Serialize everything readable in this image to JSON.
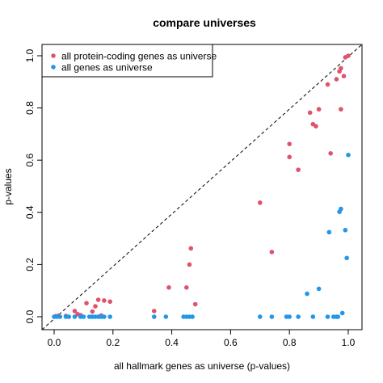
{
  "chart_data": {
    "type": "scatter",
    "title": "compare universes",
    "xlabel": "all hallmark genes as universe (p-values)",
    "ylabel": "p-values",
    "xlim": [
      0,
      1
    ],
    "ylim": [
      0,
      1
    ],
    "xticks": [
      "0.0",
      "0.2",
      "0.4",
      "0.6",
      "0.8",
      "1.0"
    ],
    "yticks": [
      "0.0",
      "0.2",
      "0.4",
      "0.6",
      "0.8",
      "1.0"
    ],
    "reference_line": "y = x (dashed)",
    "legend_position": "top-left",
    "series": [
      {
        "name": "all protein-coding genes as universe",
        "color": "#DF536B",
        "points": [
          [
            0.005,
            0.002
          ],
          [
            0.015,
            0.004
          ],
          [
            0.04,
            0.003
          ],
          [
            0.07,
            0.022
          ],
          [
            0.08,
            0.01
          ],
          [
            0.09,
            0.006
          ],
          [
            0.11,
            0.052
          ],
          [
            0.13,
            0.02
          ],
          [
            0.14,
            0.04
          ],
          [
            0.15,
            0.065
          ],
          [
            0.16,
            0.005
          ],
          [
            0.17,
            0.062
          ],
          [
            0.19,
            0.058
          ],
          [
            0.34,
            0.022
          ],
          [
            0.39,
            0.112
          ],
          [
            0.45,
            0.112
          ],
          [
            0.46,
            0.2
          ],
          [
            0.465,
            0.262
          ],
          [
            0.48,
            0.048
          ],
          [
            0.7,
            0.437
          ],
          [
            0.74,
            0.248
          ],
          [
            0.8,
            0.612
          ],
          [
            0.8,
            0.662
          ],
          [
            0.83,
            0.563
          ],
          [
            0.87,
            0.782
          ],
          [
            0.88,
            0.738
          ],
          [
            0.89,
            0.73
          ],
          [
            0.9,
            0.795
          ],
          [
            0.93,
            0.89
          ],
          [
            0.94,
            0.626
          ],
          [
            0.96,
            0.91
          ],
          [
            0.97,
            0.94
          ],
          [
            0.975,
            0.952
          ],
          [
            0.975,
            0.795
          ],
          [
            0.985,
            0.922
          ],
          [
            0.99,
            0.994
          ],
          [
            1.0,
            1.0
          ]
        ]
      },
      {
        "name": "all genes as universe",
        "color": "#2297E6",
        "points": [
          [
            0.0,
            0.0
          ],
          [
            0.01,
            0.0
          ],
          [
            0.02,
            0.0
          ],
          [
            0.04,
            0.0
          ],
          [
            0.05,
            0.0
          ],
          [
            0.07,
            0.0
          ],
          [
            0.09,
            0.0
          ],
          [
            0.1,
            0.0
          ],
          [
            0.12,
            0.0
          ],
          [
            0.13,
            0.0
          ],
          [
            0.14,
            0.0
          ],
          [
            0.15,
            0.0
          ],
          [
            0.16,
            0.0
          ],
          [
            0.17,
            0.0
          ],
          [
            0.19,
            0.0
          ],
          [
            0.34,
            0.0
          ],
          [
            0.38,
            0.0
          ],
          [
            0.44,
            0.0
          ],
          [
            0.45,
            0.0
          ],
          [
            0.46,
            0.0
          ],
          [
            0.47,
            0.0
          ],
          [
            0.7,
            0.0
          ],
          [
            0.74,
            0.0
          ],
          [
            0.79,
            0.0
          ],
          [
            0.8,
            0.0
          ],
          [
            0.83,
            0.0
          ],
          [
            0.86,
            0.088
          ],
          [
            0.88,
            0.0
          ],
          [
            0.9,
            0.107
          ],
          [
            0.93,
            0.0
          ],
          [
            0.935,
            0.324
          ],
          [
            0.95,
            0.0
          ],
          [
            0.96,
            0.0
          ],
          [
            0.965,
            0.0
          ],
          [
            0.97,
            0.402
          ],
          [
            0.975,
            0.413
          ],
          [
            0.98,
            0.014
          ],
          [
            0.99,
            0.332
          ],
          [
            0.995,
            0.225
          ],
          [
            1.0,
            0.62
          ]
        ]
      }
    ]
  }
}
